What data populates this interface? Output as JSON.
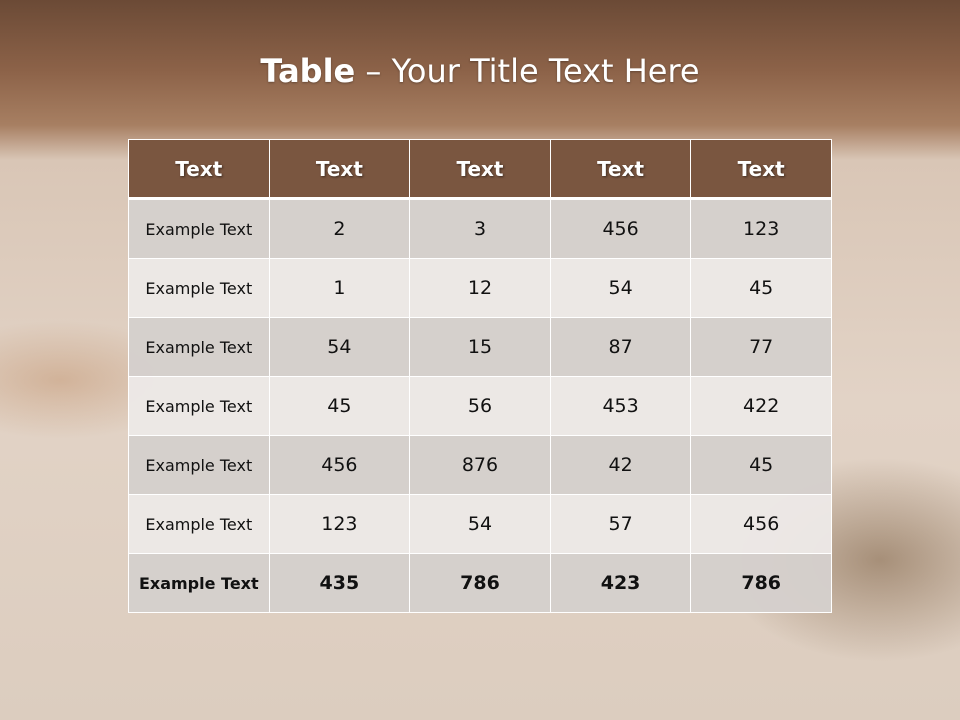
{
  "title": {
    "bold": "Table",
    "rest": " – Your Title Text Here"
  },
  "colors": {
    "header": "#7a5640",
    "row_dark": "#d5d0cc",
    "row_light": "#ece8e6"
  },
  "table": {
    "headers": [
      "Text",
      "Text",
      "Text",
      "Text",
      "Text"
    ],
    "rows": [
      [
        "Example Text",
        "2",
        "3",
        "456",
        "123"
      ],
      [
        "Example Text",
        "1",
        "12",
        "54",
        "45"
      ],
      [
        "Example Text",
        "54",
        "15",
        "87",
        "77"
      ],
      [
        "Example Text",
        "45",
        "56",
        "453",
        "422"
      ],
      [
        "Example Text",
        "456",
        "876",
        "42",
        "45"
      ],
      [
        "Example Text",
        "123",
        "54",
        "57",
        "456"
      ],
      [
        "Example Text",
        "435",
        "786",
        "423",
        "786"
      ]
    ]
  }
}
